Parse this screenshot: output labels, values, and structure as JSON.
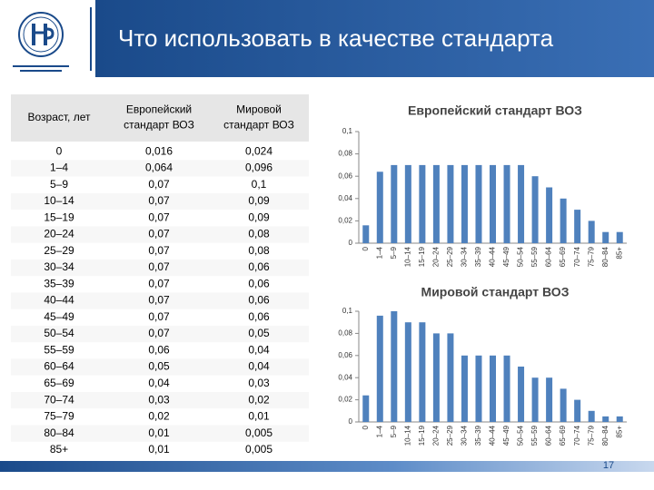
{
  "header": {
    "title": "Что использовать в качестве стандарта"
  },
  "table": {
    "columns": [
      [
        "Возраст, лет"
      ],
      [
        "Европейский",
        "стандарт ВОЗ"
      ],
      [
        "Мировой",
        "стандарт ВОЗ"
      ]
    ],
    "rows": [
      [
        "0",
        "0,016",
        "0,024"
      ],
      [
        "1–4",
        "0,064",
        "0,096"
      ],
      [
        "5–9",
        "0,07",
        "0,1"
      ],
      [
        "10–14",
        "0,07",
        "0,09"
      ],
      [
        "15–19",
        "0,07",
        "0,09"
      ],
      [
        "20–24",
        "0,07",
        "0,08"
      ],
      [
        "25–29",
        "0,07",
        "0,08"
      ],
      [
        "30–34",
        "0,07",
        "0,06"
      ],
      [
        "35–39",
        "0,07",
        "0,06"
      ],
      [
        "40–44",
        "0,07",
        "0,06"
      ],
      [
        "45–49",
        "0,07",
        "0,06"
      ],
      [
        "50–54",
        "0,07",
        "0,05"
      ],
      [
        "55–59",
        "0,06",
        "0,04"
      ],
      [
        "60–64",
        "0,05",
        "0,04"
      ],
      [
        "65–69",
        "0,04",
        "0,03"
      ],
      [
        "70–74",
        "0,03",
        "0,02"
      ],
      [
        "75–79",
        "0,02",
        "0,01"
      ],
      [
        "80–84",
        "0,01",
        "0,005"
      ],
      [
        "85+",
        "0,01",
        "0,005"
      ]
    ]
  },
  "chart_data": [
    {
      "type": "bar",
      "title": "Европейский стандарт ВОЗ",
      "categories": [
        "0",
        "1–4",
        "5–9",
        "10–14",
        "15–19",
        "20–24",
        "25–29",
        "30–34",
        "35–39",
        "40–44",
        "45–49",
        "50–54",
        "55–59",
        "60–64",
        "65–69",
        "70–74",
        "75–79",
        "80–84",
        "85+"
      ],
      "values": [
        0.016,
        0.064,
        0.07,
        0.07,
        0.07,
        0.07,
        0.07,
        0.07,
        0.07,
        0.07,
        0.07,
        0.07,
        0.06,
        0.05,
        0.04,
        0.03,
        0.02,
        0.01,
        0.01
      ],
      "color": "#4f81bd",
      "ylim": [
        0,
        0.1
      ],
      "yticks": [
        0,
        {
          "value": 0.02,
          "label": "0,02"
        },
        {
          "value": 0.04,
          "label": "0,04"
        },
        {
          "value": 0.06,
          "label": "0,06"
        },
        {
          "value": 0.08,
          "label": "0,08"
        },
        {
          "value": 0.1,
          "label": "0,1"
        }
      ]
    },
    {
      "type": "bar",
      "title": "Мировой стандарт ВОЗ",
      "categories": [
        "0",
        "1–4",
        "5–9",
        "10–14",
        "15–19",
        "20–24",
        "25–29",
        "30–34",
        "35–39",
        "40–44",
        "45–49",
        "50–54",
        "55–59",
        "60–64",
        "65–69",
        "70–74",
        "75–79",
        "80–84",
        "85+"
      ],
      "values": [
        0.024,
        0.096,
        0.1,
        0.09,
        0.09,
        0.08,
        0.08,
        0.06,
        0.06,
        0.06,
        0.06,
        0.05,
        0.04,
        0.04,
        0.03,
        0.02,
        0.01,
        0.005,
        0.005
      ],
      "color": "#4f81bd",
      "ylim": [
        0,
        0.1
      ],
      "yticks": [
        0,
        {
          "value": 0.02,
          "label": "0,02"
        },
        {
          "value": 0.04,
          "label": "0,04"
        },
        {
          "value": 0.06,
          "label": "0,06"
        },
        {
          "value": 0.08,
          "label": "0,08"
        },
        {
          "value": 0.1,
          "label": "0,1"
        }
      ]
    }
  ],
  "page_number": "17"
}
